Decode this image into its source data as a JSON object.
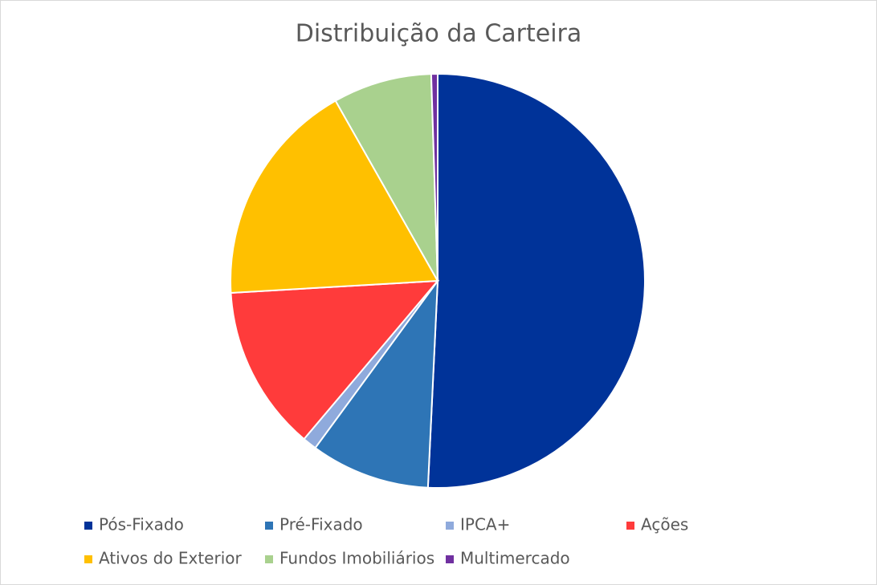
{
  "chart_data": {
    "type": "pie",
    "title": "Distribuição da Carteira",
    "categories": [
      "Pós-Fixado",
      "Pré-Fixado",
      "IPCA+",
      "Ações",
      "Ativos do Exterior",
      "Fundos Imobiliários",
      "Multimercado"
    ],
    "values": [
      50.7,
      9.3,
      1.1,
      12.9,
      17.7,
      7.7,
      0.5
    ],
    "colors": [
      "#003399",
      "#2e75b6",
      "#8faadc",
      "#ff3b3b",
      "#ffc000",
      "#a9d18e",
      "#7030a0"
    ]
  }
}
